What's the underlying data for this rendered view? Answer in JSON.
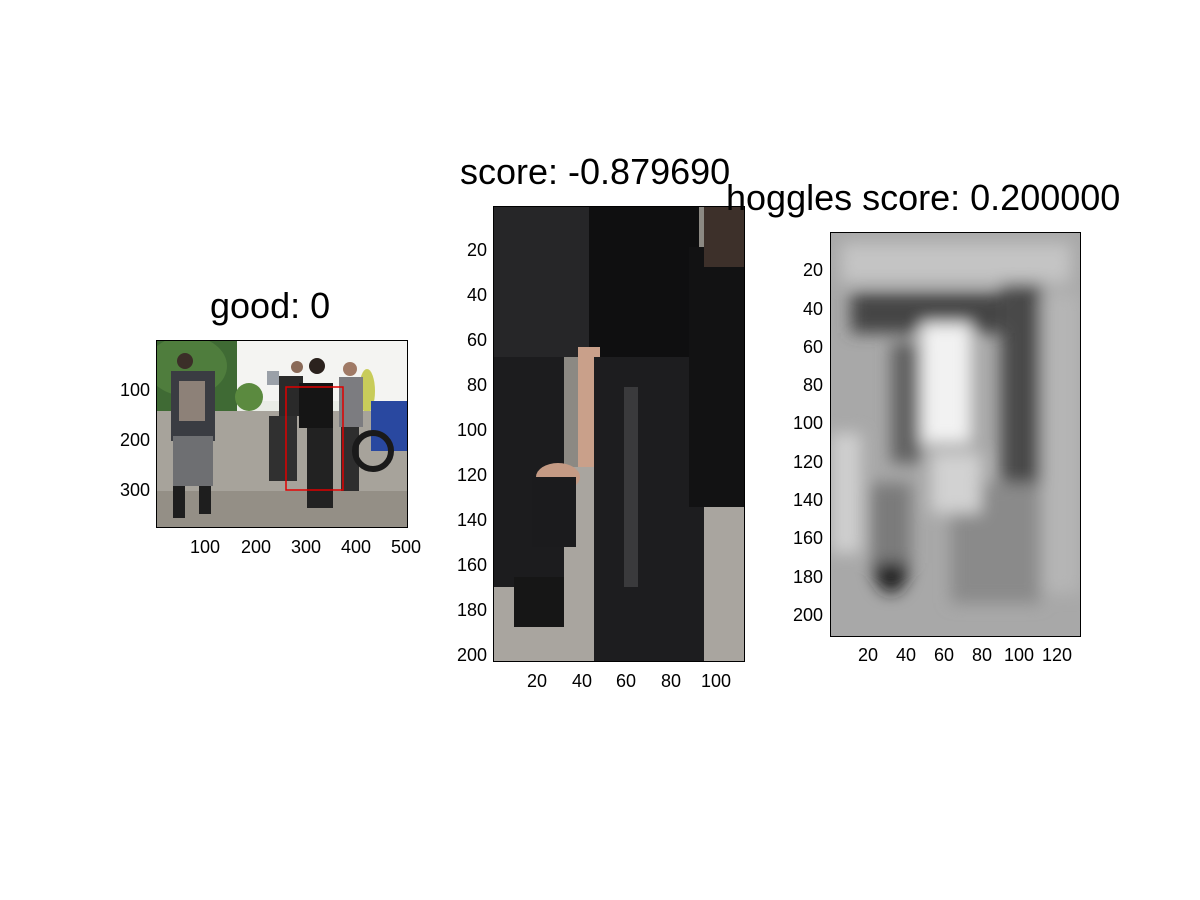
{
  "panels": {
    "overview": {
      "title": "good: 0",
      "y_ticks": [
        "100",
        "200",
        "300"
      ],
      "x_ticks": [
        "100",
        "200",
        "300",
        "400",
        "500"
      ]
    },
    "crop": {
      "title": "score: -0.879690",
      "y_ticks": [
        "20",
        "40",
        "60",
        "80",
        "100",
        "120",
        "140",
        "160",
        "180",
        "200"
      ],
      "x_ticks": [
        "20",
        "40",
        "60",
        "80",
        "100"
      ]
    },
    "hoggles": {
      "title": "hoggles score: 0.200000",
      "y_ticks": [
        "20",
        "40",
        "60",
        "80",
        "100",
        "120",
        "140",
        "160",
        "180",
        "200"
      ],
      "x_ticks": [
        "20",
        "40",
        "60",
        "80",
        "100",
        "120"
      ]
    }
  },
  "colors": {
    "bbox": "#e00000",
    "axis": "#000000"
  }
}
